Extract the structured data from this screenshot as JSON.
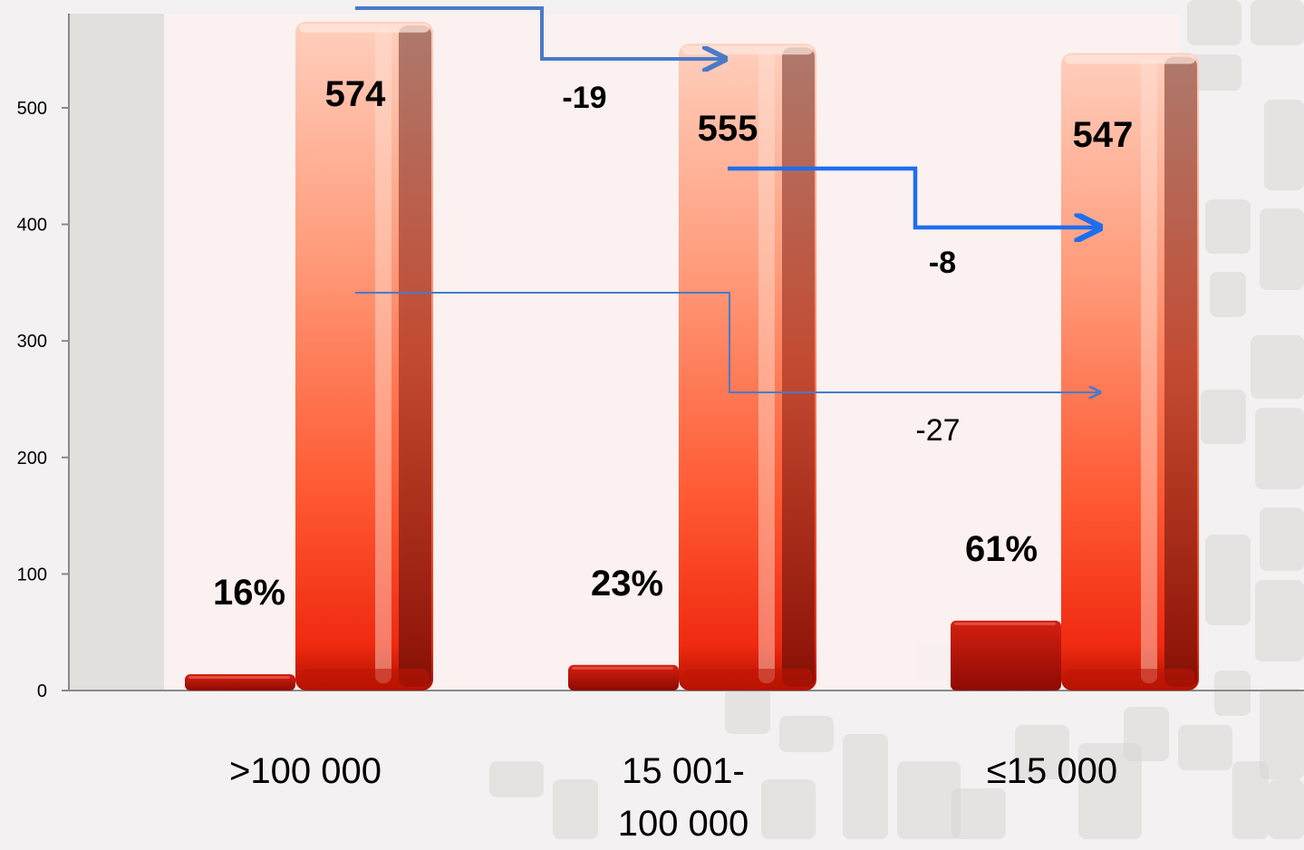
{
  "chart_data": {
    "type": "bar",
    "title": "",
    "xlabel": "",
    "ylabel": "",
    "ylim": [
      0,
      580
    ],
    "yticks": [
      0,
      100,
      200,
      300,
      400,
      500
    ],
    "grid": false,
    "categories": [
      ">100 000",
      "15 001-\n100 000",
      "≤15 000"
    ],
    "series": [
      {
        "values": [
          14,
          22,
          60
        ],
        "labels": [
          "16%",
          "23%",
          "61%"
        ],
        "color": "#c81a0a"
      },
      {
        "values": [
          574,
          555,
          547
        ],
        "labels": [
          "574",
          "555",
          "547"
        ],
        "color": "#f2552c"
      }
    ],
    "annotations": [
      {
        "text": "-19",
        "from": ">100 000",
        "to": "15 001-\n100 000"
      },
      {
        "text": "-8",
        "from": "15 001-\n100 000",
        "to": "≤15 000"
      },
      {
        "text": "-27",
        "from": ">100 000",
        "to": "≤15 000"
      }
    ],
    "colors": {
      "arrow": "#4a7ac8",
      "arrow_bright": "#1e6ef0"
    }
  }
}
